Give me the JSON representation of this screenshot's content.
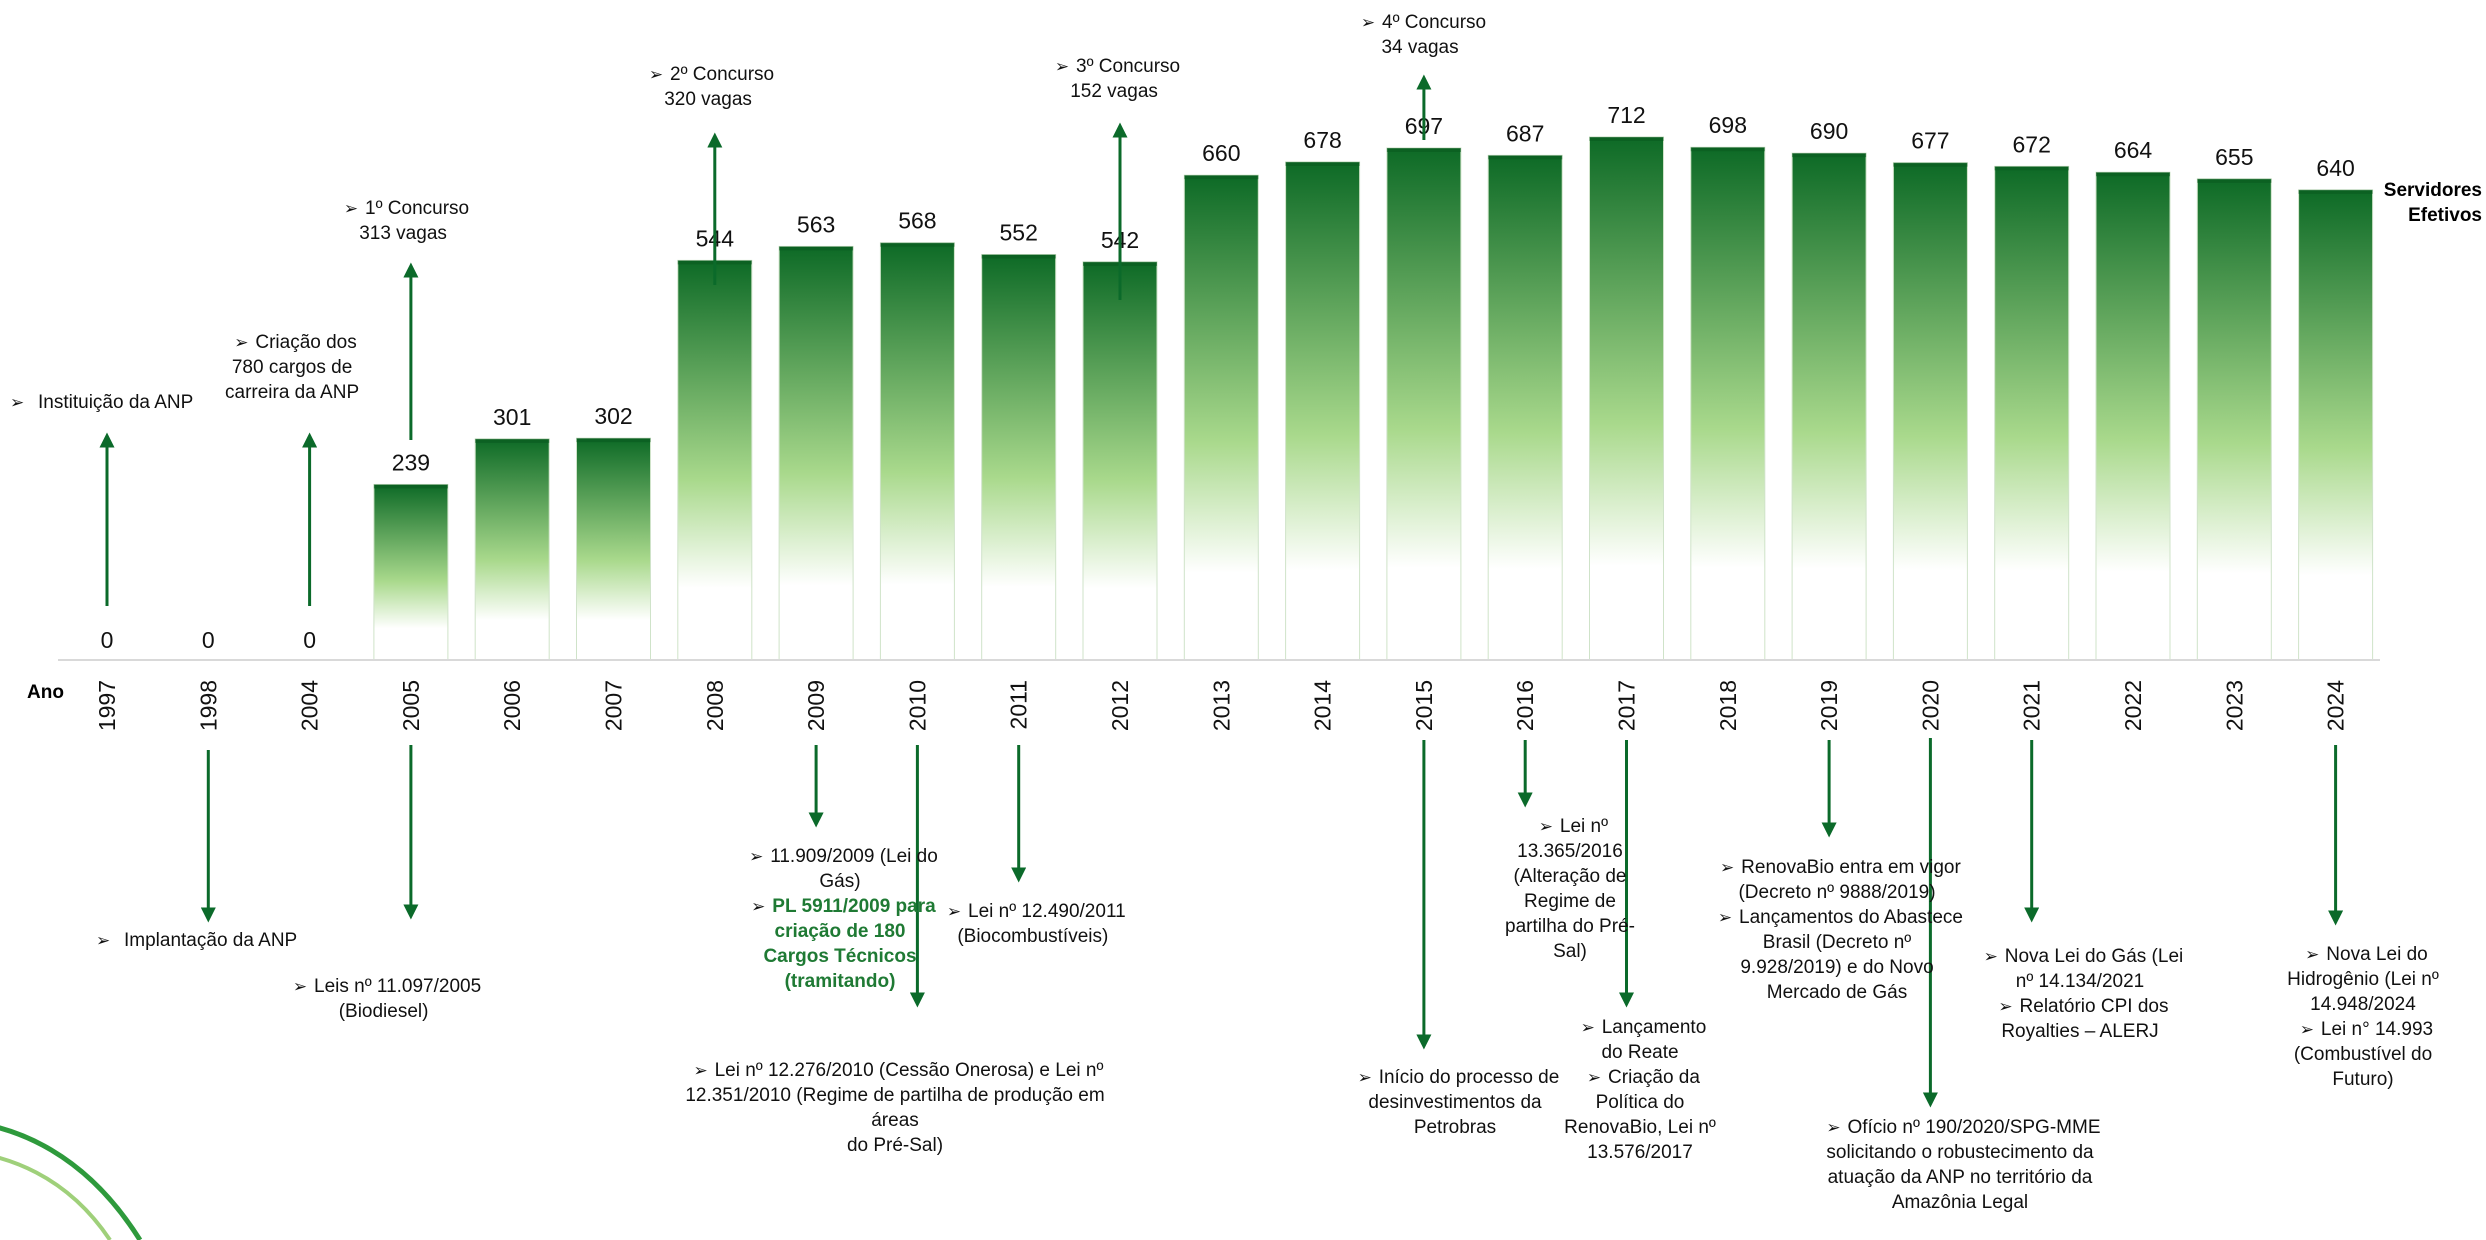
{
  "chart_data": {
    "type": "bar",
    "categories": [
      "1997",
      "1998",
      "2004",
      "2005",
      "2006",
      "2007",
      "2008",
      "2009",
      "2010",
      "2011",
      "2012",
      "2013",
      "2014",
      "2015",
      "2016",
      "2017",
      "2018",
      "2019",
      "2020",
      "2021",
      "2022",
      "2023",
      "2024"
    ],
    "values": [
      0,
      0,
      0,
      239,
      301,
      302,
      544,
      563,
      568,
      552,
      542,
      660,
      678,
      697,
      687,
      712,
      698,
      690,
      677,
      672,
      664,
      655,
      640
    ],
    "series_label": "Servidores Efetivos",
    "xlabel": "Ano",
    "ylim": [
      0,
      750
    ],
    "grid": false,
    "bar_color": "#1a7a30"
  },
  "annotations": {
    "above": [
      {
        "year": "1997",
        "arrow": "up",
        "lines": [
          {
            "t": "Instituição da ANP",
            "b": true
          }
        ]
      },
      {
        "year": "2004",
        "arrow": "up",
        "lines": [
          {
            "t": "Criação dos",
            "b": true
          },
          {
            "t": "780 cargos de"
          },
          {
            "t": "carreira da ANP"
          }
        ]
      },
      {
        "year": "2005",
        "arrow": "up",
        "lines": [
          {
            "t": "1º Concurso",
            "b": true
          },
          {
            "t": "313 vagas"
          }
        ]
      },
      {
        "year": "2008",
        "arrow": "up",
        "lines": [
          {
            "t": "2º Concurso",
            "b": true
          },
          {
            "t": "320 vagas"
          }
        ]
      },
      {
        "year": "2012",
        "arrow": "up",
        "lines": [
          {
            "t": "3º Concurso",
            "b": true
          },
          {
            "t": "152 vagas"
          }
        ]
      },
      {
        "year": "2015",
        "arrow": "up",
        "lines": [
          {
            "t": "4º Concurso",
            "b": true
          },
          {
            "t": "34 vagas"
          }
        ]
      }
    ],
    "below": [
      {
        "year": "1998",
        "arrow": "down",
        "lines": [
          {
            "t": "Implantação da ANP",
            "b": true
          }
        ]
      },
      {
        "year": "2005",
        "arrow": "down",
        "lines": [
          {
            "t": "Leis nº 11.097/2005",
            "b": true
          },
          {
            "t": "(Biodiesel)"
          }
        ]
      },
      {
        "year": "2009",
        "arrow": "down",
        "lines": [
          {
            "t": "11.909/2009 (Lei do",
            "b": true
          },
          {
            "t": "Gás)"
          },
          {
            "t": "PL 5911/2009 para",
            "b": true,
            "g": true
          },
          {
            "t": "criação de 180",
            "g": true
          },
          {
            "t": "Cargos Técnicos",
            "g": true
          },
          {
            "t": "(tramitando)",
            "g": true
          }
        ]
      },
      {
        "year": "2010",
        "arrow": "down",
        "lines": [
          {
            "t": "Lei nº 12.276/2010 (Cessão Onerosa) e Lei nº",
            "b": true
          },
          {
            "t": "12.351/2010 (Regime de partilha de produção em áreas"
          },
          {
            "t": "do Pré-Sal)"
          }
        ]
      },
      {
        "year": "2011",
        "arrow": "down",
        "lines": [
          {
            "t": "Lei nº 12.490/2011",
            "b": true
          },
          {
            "t": "(Biocombustíveis)"
          }
        ]
      },
      {
        "year": "2015",
        "arrow": "down",
        "lines": [
          {
            "t": "Início do processo de",
            "b": true
          },
          {
            "t": "desinvestimentos da"
          },
          {
            "t": "Petrobras"
          }
        ]
      },
      {
        "year": "2016",
        "arrow": "down",
        "lines": [
          {
            "t": "Lei nº",
            "b": true
          },
          {
            "t": "13.365/2016"
          },
          {
            "t": "(Alteração de"
          },
          {
            "t": "Regime de"
          },
          {
            "t": "partilha do Pré-"
          },
          {
            "t": "Sal)"
          }
        ]
      },
      {
        "year": "2017",
        "arrow": "down",
        "lines": [
          {
            "t": "Lançamento",
            "b": true
          },
          {
            "t": "do Reate"
          },
          {
            "t": "Criação da",
            "b": true
          },
          {
            "t": "Política do"
          },
          {
            "t": "RenovaBio, Lei nº"
          },
          {
            "t": "13.576/2017"
          }
        ]
      },
      {
        "year": "2019",
        "arrow": "down",
        "lines": [
          {
            "t": "RenovaBio entra em vigor",
            "b": true
          },
          {
            "t": "(Decreto nº 9888/2019)"
          },
          {
            "t": "Lançamentos do Abastece",
            "b": true
          },
          {
            "t": "Brasil (Decreto nº"
          },
          {
            "t": "9.928/2019) e do Novo"
          },
          {
            "t": "Mercado de Gás"
          }
        ]
      },
      {
        "year": "2020",
        "arrow": "down",
        "lines": [
          {
            "t": "Ofício nº 190/2020/SPG-MME",
            "b": true
          },
          {
            "t": "solicitando o robustecimento da"
          },
          {
            "t": "atuação da ANP no território da"
          },
          {
            "t": "Amazônia Legal"
          }
        ]
      },
      {
        "year": "2021",
        "arrow": "down",
        "lines": [
          {
            "t": "Nova Lei do Gás (Lei",
            "b": true
          },
          {
            "t": "nº 14.134/2021"
          },
          {
            "t": "Relatório CPI dos",
            "b": true
          },
          {
            "t": "Royalties – ALERJ"
          }
        ]
      },
      {
        "year": "2024",
        "arrow": "down",
        "lines": [
          {
            "t": "Nova Lei do",
            "b": true
          },
          {
            "t": "Hidrogênio (Lei nº"
          },
          {
            "t": "14.948/2024"
          },
          {
            "t": "Lei n° 14.993",
            "b": true
          },
          {
            "t": "(Combustível do"
          },
          {
            "t": "Futuro)"
          }
        ]
      }
    ]
  }
}
